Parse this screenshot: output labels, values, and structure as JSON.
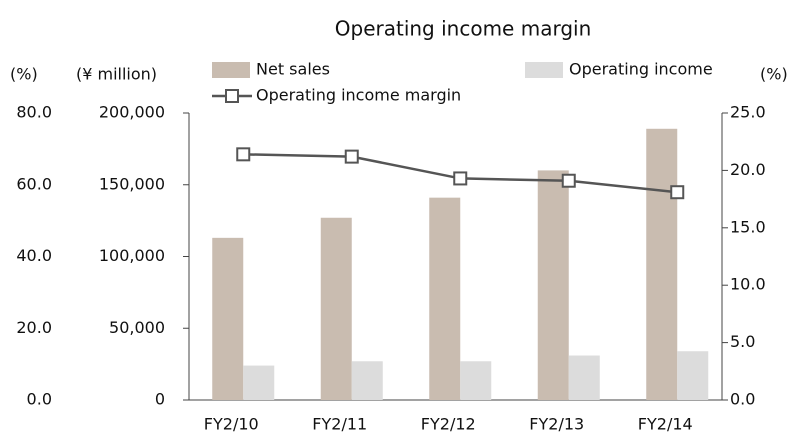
{
  "chart_data": {
    "type": "bar_line",
    "title": "Operating income margin",
    "y3_label": "(%)",
    "y_label": "(¥ million)",
    "y2_label": "(%)",
    "categories": [
      "FY2/10",
      "FY2/11",
      "FY2/12",
      "FY2/13",
      "FY2/14"
    ],
    "series": [
      {
        "name": "Net sales",
        "color": "#c9bcb0",
        "type": "bar",
        "values": [
          113000,
          127000,
          141000,
          160000,
          189000
        ]
      },
      {
        "name": "Operating income",
        "color": "#dcdcdc",
        "type": "bar",
        "values": [
          24000,
          27000,
          27000,
          31000,
          34000
        ]
      },
      {
        "name": "Operating income margin",
        "color": "#555555",
        "type": "line",
        "axis": "y2",
        "values": [
          21.4,
          21.2,
          19.3,
          19.1,
          18.1
        ]
      }
    ],
    "ylim": [
      0,
      200000
    ],
    "yticks": [
      0,
      {
        "value": 50000,
        "label": "50,000"
      },
      {
        "value": 100000,
        "label": "100,000"
      },
      {
        "value": 150000,
        "label": "150,000"
      },
      {
        "value": 200000,
        "label": "200,000"
      }
    ],
    "y2lim": [
      0,
      25
    ],
    "y2ticks": [
      {
        "value": 0,
        "label": "0.0"
      },
      {
        "value": 5,
        "label": "5.0"
      },
      {
        "value": 10,
        "label": "10.0"
      },
      {
        "value": 15,
        "label": "15.0"
      },
      {
        "value": 20,
        "label": "20.0"
      },
      {
        "value": 25,
        "label": "25.0"
      }
    ],
    "y3lim": [
      0,
      80
    ],
    "y3ticks": [
      {
        "value": 0,
        "label": "0.0"
      },
      {
        "value": 20,
        "label": "20.0"
      },
      {
        "value": 40,
        "label": "40.0"
      },
      {
        "value": 60,
        "label": "60.0"
      },
      {
        "value": 80,
        "label": "80.0"
      }
    ]
  }
}
